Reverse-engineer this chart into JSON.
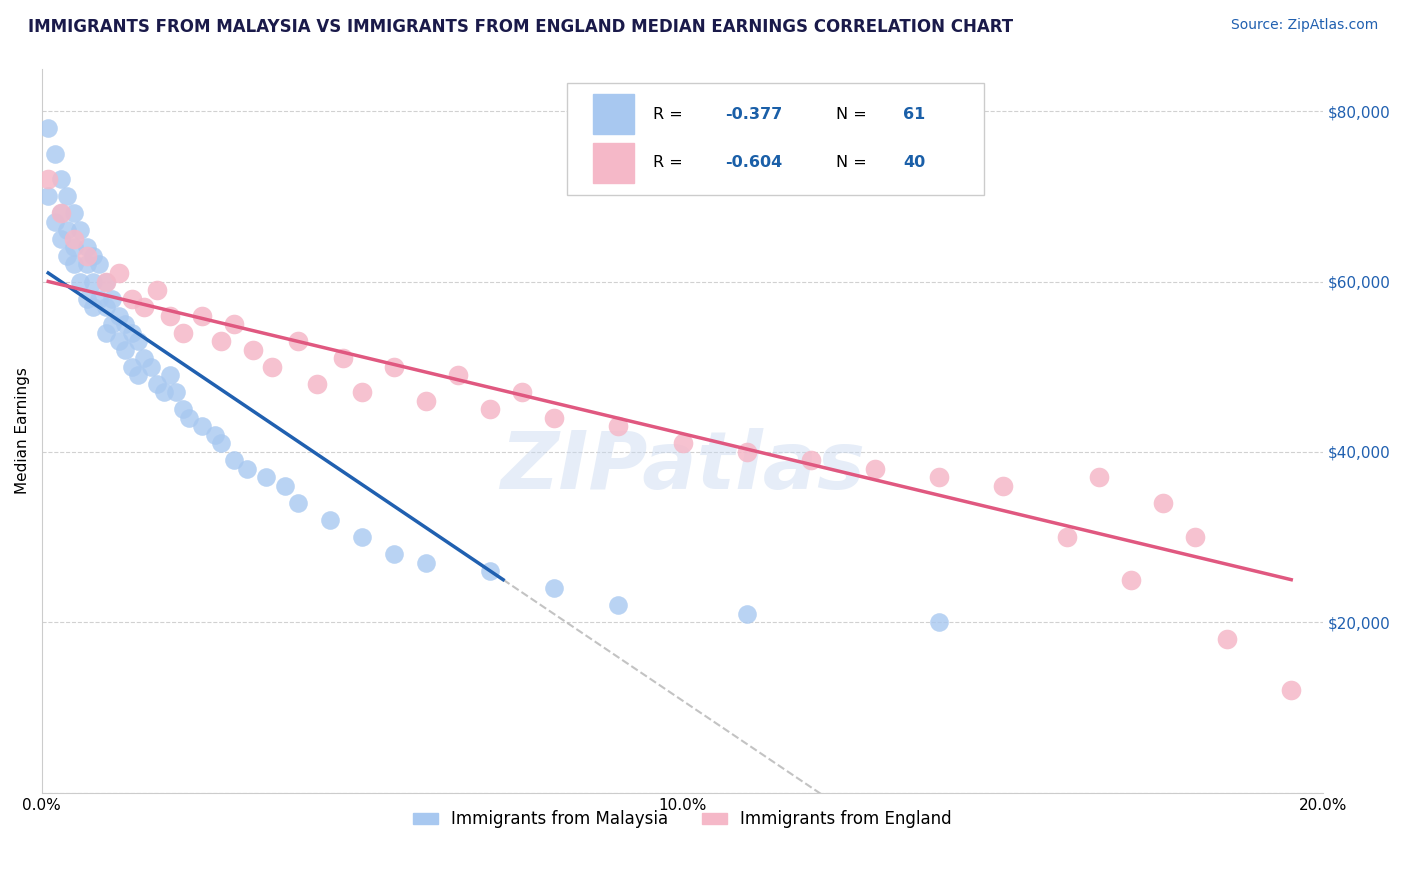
{
  "title": "IMMIGRANTS FROM MALAYSIA VS IMMIGRANTS FROM ENGLAND MEDIAN EARNINGS CORRELATION CHART",
  "source": "Source: ZipAtlas.com",
  "ylabel": "Median Earnings",
  "xmin": 0.0,
  "xmax": 0.2,
  "ymin": 0,
  "ymax": 85000,
  "yticks": [
    0,
    20000,
    40000,
    60000,
    80000
  ],
  "ytick_labels": [
    "",
    "$20,000",
    "$40,000",
    "$60,000",
    "$80,000"
  ],
  "xticks": [
    0.0,
    0.05,
    0.1,
    0.15,
    0.2
  ],
  "xtick_labels": [
    "0.0%",
    "",
    "10.0%",
    "",
    "20.0%"
  ],
  "malaysia_color": "#a8c8f0",
  "england_color": "#f5b8c8",
  "malaysia_R": -0.377,
  "malaysia_N": 61,
  "england_R": -0.604,
  "england_N": 40,
  "trend_color_malaysia": "#2060b0",
  "trend_color_england": "#e05880",
  "legend_text_color": "#1a5fa8",
  "title_color": "#1a1a4a",
  "source_color": "#2060b0",
  "malaysia_x": [
    0.001,
    0.001,
    0.002,
    0.002,
    0.003,
    0.003,
    0.003,
    0.004,
    0.004,
    0.004,
    0.005,
    0.005,
    0.005,
    0.006,
    0.006,
    0.007,
    0.007,
    0.007,
    0.008,
    0.008,
    0.008,
    0.009,
    0.009,
    0.01,
    0.01,
    0.01,
    0.011,
    0.011,
    0.012,
    0.012,
    0.013,
    0.013,
    0.014,
    0.014,
    0.015,
    0.015,
    0.016,
    0.017,
    0.018,
    0.019,
    0.02,
    0.021,
    0.022,
    0.023,
    0.025,
    0.027,
    0.028,
    0.03,
    0.032,
    0.035,
    0.038,
    0.04,
    0.045,
    0.05,
    0.055,
    0.06,
    0.07,
    0.08,
    0.09,
    0.11,
    0.14
  ],
  "malaysia_y": [
    78000,
    70000,
    75000,
    67000,
    72000,
    65000,
    68000,
    70000,
    63000,
    66000,
    64000,
    68000,
    62000,
    66000,
    60000,
    64000,
    62000,
    58000,
    63000,
    60000,
    57000,
    62000,
    58000,
    60000,
    57000,
    54000,
    58000,
    55000,
    56000,
    53000,
    55000,
    52000,
    54000,
    50000,
    53000,
    49000,
    51000,
    50000,
    48000,
    47000,
    49000,
    47000,
    45000,
    44000,
    43000,
    42000,
    41000,
    39000,
    38000,
    37000,
    36000,
    34000,
    32000,
    30000,
    28000,
    27000,
    26000,
    24000,
    22000,
    21000,
    20000
  ],
  "england_x": [
    0.001,
    0.003,
    0.005,
    0.007,
    0.01,
    0.012,
    0.014,
    0.016,
    0.018,
    0.02,
    0.022,
    0.025,
    0.028,
    0.03,
    0.033,
    0.036,
    0.04,
    0.043,
    0.047,
    0.05,
    0.055,
    0.06,
    0.065,
    0.07,
    0.075,
    0.08,
    0.09,
    0.1,
    0.11,
    0.12,
    0.13,
    0.14,
    0.15,
    0.16,
    0.165,
    0.17,
    0.175,
    0.18,
    0.185,
    0.195
  ],
  "england_y": [
    72000,
    68000,
    65000,
    63000,
    60000,
    61000,
    58000,
    57000,
    59000,
    56000,
    54000,
    56000,
    53000,
    55000,
    52000,
    50000,
    53000,
    48000,
    51000,
    47000,
    50000,
    46000,
    49000,
    45000,
    47000,
    44000,
    43000,
    41000,
    40000,
    39000,
    38000,
    37000,
    36000,
    30000,
    37000,
    25000,
    34000,
    30000,
    18000,
    12000
  ],
  "malaysia_trend_x0": 0.001,
  "malaysia_trend_y0": 61000,
  "malaysia_trend_x1": 0.072,
  "malaysia_trend_y1": 25000,
  "england_trend_x0": 0.001,
  "england_trend_y0": 60000,
  "england_trend_x1": 0.195,
  "england_trend_y1": 25000
}
